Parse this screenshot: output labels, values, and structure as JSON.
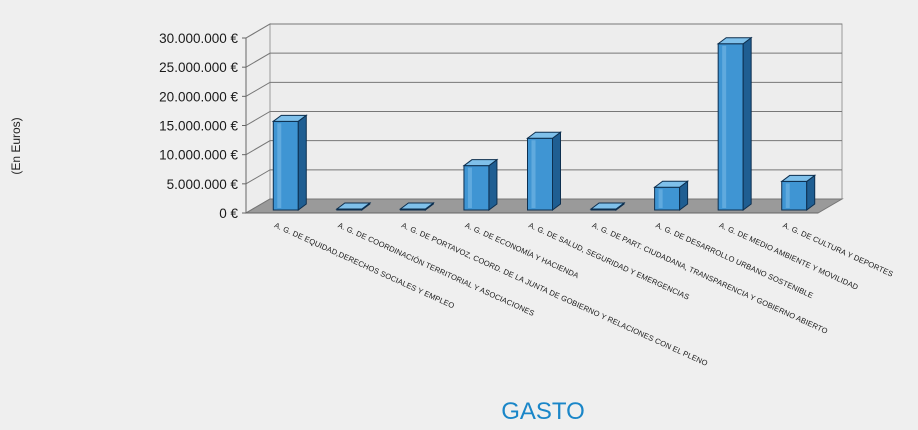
{
  "chart_data": {
    "type": "bar",
    "title": "GASTO",
    "ylabel": "(En Euros)",
    "xlabel": "",
    "ylim": [
      0,
      30000000
    ],
    "yticks": [
      0,
      5000000,
      10000000,
      15000000,
      20000000,
      25000000,
      30000000
    ],
    "ytick_labels": [
      "0 €",
      "5.000.000 €",
      "10.000.000 €",
      "15.000.000 €",
      "20.000.000 €",
      "25.000.000 €",
      "30.000.000 €"
    ],
    "grid": true,
    "categories": [
      "A. G. DE EQUIDAD,DERECHOS SOCIALES Y EMPLEO",
      "A. G. DE COORDINACIÓN TERRITORIAL Y ASOCIACIONES",
      "A. G. DE PORTAVOZ, COORD. DE LA JUNTA DE GOBIERNO Y RELACIONES CON EL PLENO",
      "A. G. DE ECONOMÍA Y HACIENDA",
      "A. G. DE SALUD, SEGURIDAD Y EMERGENCIAS",
      "A. G. DE PART. CIUDADANA, TRANSPARENCIA Y GOBIERNO ABIERTO",
      "A. G. DE DESARROLLO URBANO SOSTENIBLE",
      "A. G. DE MEDIO AMBIENTE Y MOVILIDAD",
      "A. G. DE CULTURA Y DEPORTES"
    ],
    "values": [
      15200000,
      0,
      0,
      7600000,
      12300000,
      0,
      3900000,
      28500000,
      4900000
    ],
    "colors": {
      "bar_front": "#3f95d3",
      "bar_top": "#7fc0ea",
      "bar_side": "#1f5e92",
      "bar_outline": "#0d2f4f",
      "floor": "#9a9a9a",
      "wall": "#ededed",
      "title": "#1a86c8"
    }
  }
}
